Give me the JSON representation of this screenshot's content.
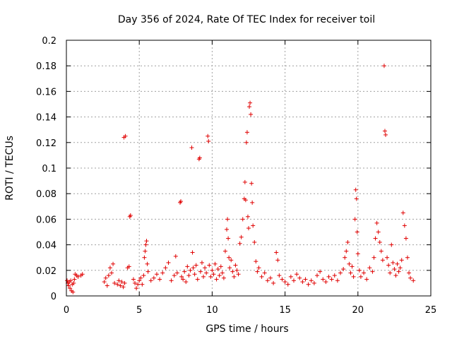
{
  "chart_data": {
    "type": "scatter",
    "title": "Day 356 of 2024, Rate Of TEC Index for receiver toil",
    "xlabel": "GPS time / hours",
    "ylabel": "ROTI / TECUs",
    "xlim": [
      0,
      25
    ],
    "ylim": [
      0,
      0.2
    ],
    "xticks": [
      0,
      5,
      10,
      15,
      20,
      25
    ],
    "xtick_labels": [
      "0",
      "5",
      "10",
      "15",
      "20",
      "25"
    ],
    "yticks": [
      0,
      0.02,
      0.04,
      0.06,
      0.08,
      0.1,
      0.12,
      0.14,
      0.16,
      0.18,
      0.2
    ],
    "ytick_labels": [
      "0",
      "0.02",
      "0.04",
      "0.06",
      "0.08",
      "0.1",
      "0.12",
      "0.14",
      "0.16",
      "0.18",
      "0.2"
    ],
    "grid": true,
    "marker": "+",
    "color": "#e00000",
    "series": [
      {
        "name": "ROTI",
        "points": [
          [
            0.05,
            0.012
          ],
          [
            0.1,
            0.01
          ],
          [
            0.15,
            0.008
          ],
          [
            0.2,
            0.011
          ],
          [
            0.25,
            0.006
          ],
          [
            0.3,
            0.012
          ],
          [
            0.35,
            0.004
          ],
          [
            0.4,
            0.009
          ],
          [
            0.45,
            0.003
          ],
          [
            0.5,
            0.01
          ],
          [
            0.55,
            0.013
          ],
          [
            0.6,
            0.017
          ],
          [
            0.7,
            0.016
          ],
          [
            0.8,
            0.015
          ],
          [
            1.0,
            0.016
          ],
          [
            1.1,
            0.017
          ],
          [
            2.6,
            0.011
          ],
          [
            2.7,
            0.014
          ],
          [
            2.8,
            0.008
          ],
          [
            2.9,
            0.016
          ],
          [
            3.0,
            0.022
          ],
          [
            3.1,
            0.018
          ],
          [
            3.2,
            0.025
          ],
          [
            3.3,
            0.01
          ],
          [
            3.5,
            0.009
          ],
          [
            3.6,
            0.012
          ],
          [
            3.7,
            0.008
          ],
          [
            3.8,
            0.011
          ],
          [
            3.9,
            0.007
          ],
          [
            4.0,
            0.01
          ],
          [
            3.95,
            0.124
          ],
          [
            4.05,
            0.125
          ],
          [
            4.2,
            0.022
          ],
          [
            4.3,
            0.023
          ],
          [
            4.35,
            0.062
          ],
          [
            4.4,
            0.063
          ],
          [
            4.6,
            0.013
          ],
          [
            4.7,
            0.01
          ],
          [
            4.8,
            0.006
          ],
          [
            4.9,
            0.009
          ],
          [
            5.0,
            0.012
          ],
          [
            5.1,
            0.014
          ],
          [
            5.2,
            0.009
          ],
          [
            5.3,
            0.016
          ],
          [
            5.35,
            0.03
          ],
          [
            5.4,
            0.035
          ],
          [
            5.45,
            0.04
          ],
          [
            5.5,
            0.043
          ],
          [
            5.55,
            0.025
          ],
          [
            5.6,
            0.019
          ],
          [
            5.8,
            0.012
          ],
          [
            6.0,
            0.014
          ],
          [
            6.2,
            0.017
          ],
          [
            6.4,
            0.013
          ],
          [
            6.6,
            0.018
          ],
          [
            6.8,
            0.022
          ],
          [
            7.0,
            0.026
          ],
          [
            7.2,
            0.012
          ],
          [
            7.4,
            0.016
          ],
          [
            7.5,
            0.031
          ],
          [
            7.6,
            0.018
          ],
          [
            7.8,
            0.073
          ],
          [
            7.85,
            0.074
          ],
          [
            7.9,
            0.015
          ],
          [
            8.0,
            0.013
          ],
          [
            8.1,
            0.019
          ],
          [
            8.2,
            0.011
          ],
          [
            8.3,
            0.023
          ],
          [
            8.4,
            0.016
          ],
          [
            8.5,
            0.02
          ],
          [
            8.6,
            0.116
          ],
          [
            8.65,
            0.034
          ],
          [
            8.7,
            0.022
          ],
          [
            8.8,
            0.017
          ],
          [
            8.9,
            0.024
          ],
          [
            9.0,
            0.013
          ],
          [
            9.1,
            0.107
          ],
          [
            9.15,
            0.108
          ],
          [
            9.2,
            0.019
          ],
          [
            9.3,
            0.026
          ],
          [
            9.4,
            0.015
          ],
          [
            9.5,
            0.022
          ],
          [
            9.6,
            0.018
          ],
          [
            9.7,
            0.125
          ],
          [
            9.75,
            0.121
          ],
          [
            9.8,
            0.024
          ],
          [
            9.9,
            0.015
          ],
          [
            10.0,
            0.02
          ],
          [
            10.1,
            0.017
          ],
          [
            10.2,
            0.025
          ],
          [
            10.3,
            0.013
          ],
          [
            10.4,
            0.021
          ],
          [
            10.5,
            0.016
          ],
          [
            10.6,
            0.023
          ],
          [
            10.7,
            0.018
          ],
          [
            10.8,
            0.014
          ],
          [
            10.9,
            0.035
          ],
          [
            11.0,
            0.052
          ],
          [
            11.05,
            0.06
          ],
          [
            11.1,
            0.045
          ],
          [
            11.15,
            0.03
          ],
          [
            11.2,
            0.022
          ],
          [
            11.3,
            0.028
          ],
          [
            11.4,
            0.019
          ],
          [
            11.5,
            0.015
          ],
          [
            11.6,
            0.024
          ],
          [
            11.7,
            0.02
          ],
          [
            11.8,
            0.017
          ],
          [
            11.9,
            0.041
          ],
          [
            12.0,
            0.046
          ],
          [
            12.1,
            0.06
          ],
          [
            12.2,
            0.076
          ],
          [
            12.25,
            0.089
          ],
          [
            12.3,
            0.075
          ],
          [
            12.35,
            0.12
          ],
          [
            12.4,
            0.128
          ],
          [
            12.45,
            0.062
          ],
          [
            12.5,
            0.053
          ],
          [
            12.55,
            0.148
          ],
          [
            12.6,
            0.151
          ],
          [
            12.65,
            0.142
          ],
          [
            12.7,
            0.088
          ],
          [
            12.75,
            0.073
          ],
          [
            12.8,
            0.055
          ],
          [
            12.9,
            0.042
          ],
          [
            13.0,
            0.027
          ],
          [
            13.1,
            0.019
          ],
          [
            13.2,
            0.022
          ],
          [
            13.4,
            0.015
          ],
          [
            13.6,
            0.018
          ],
          [
            13.8,
            0.012
          ],
          [
            14.0,
            0.014
          ],
          [
            14.2,
            0.01
          ],
          [
            14.4,
            0.034
          ],
          [
            14.5,
            0.028
          ],
          [
            14.6,
            0.016
          ],
          [
            14.8,
            0.013
          ],
          [
            15.0,
            0.011
          ],
          [
            15.2,
            0.009
          ],
          [
            15.4,
            0.015
          ],
          [
            15.6,
            0.012
          ],
          [
            15.8,
            0.017
          ],
          [
            16.0,
            0.014
          ],
          [
            16.2,
            0.011
          ],
          [
            16.4,
            0.013
          ],
          [
            16.6,
            0.009
          ],
          [
            16.8,
            0.012
          ],
          [
            17.0,
            0.01
          ],
          [
            17.2,
            0.016
          ],
          [
            17.4,
            0.019
          ],
          [
            17.6,
            0.013
          ],
          [
            17.8,
            0.011
          ],
          [
            18.0,
            0.015
          ],
          [
            18.2,
            0.013
          ],
          [
            18.4,
            0.016
          ],
          [
            18.6,
            0.012
          ],
          [
            18.8,
            0.018
          ],
          [
            19.0,
            0.021
          ],
          [
            19.1,
            0.03
          ],
          [
            19.2,
            0.035
          ],
          [
            19.3,
            0.042
          ],
          [
            19.4,
            0.025
          ],
          [
            19.5,
            0.018
          ],
          [
            19.6,
            0.023
          ],
          [
            19.7,
            0.015
          ],
          [
            19.8,
            0.06
          ],
          [
            19.85,
            0.083
          ],
          [
            19.9,
            0.076
          ],
          [
            19.95,
            0.05
          ],
          [
            20.0,
            0.033
          ],
          [
            20.1,
            0.02
          ],
          [
            20.2,
            0.015
          ],
          [
            20.4,
            0.018
          ],
          [
            20.6,
            0.013
          ],
          [
            20.8,
            0.022
          ],
          [
            21.0,
            0.019
          ],
          [
            21.1,
            0.03
          ],
          [
            21.2,
            0.045
          ],
          [
            21.3,
            0.057
          ],
          [
            21.4,
            0.05
          ],
          [
            21.5,
            0.042
          ],
          [
            21.6,
            0.035
          ],
          [
            21.7,
            0.028
          ],
          [
            21.8,
            0.18
          ],
          [
            21.85,
            0.129
          ],
          [
            21.9,
            0.126
          ],
          [
            22.0,
            0.03
          ],
          [
            22.1,
            0.024
          ],
          [
            22.2,
            0.018
          ],
          [
            22.3,
            0.04
          ],
          [
            22.4,
            0.026
          ],
          [
            22.5,
            0.021
          ],
          [
            22.6,
            0.016
          ],
          [
            22.7,
            0.025
          ],
          [
            22.8,
            0.019
          ],
          [
            22.9,
            0.022
          ],
          [
            23.0,
            0.028
          ],
          [
            23.1,
            0.065
          ],
          [
            23.2,
            0.055
          ],
          [
            23.3,
            0.045
          ],
          [
            23.4,
            0.03
          ],
          [
            23.5,
            0.018
          ],
          [
            23.6,
            0.014
          ],
          [
            23.8,
            0.012
          ]
        ]
      }
    ]
  }
}
